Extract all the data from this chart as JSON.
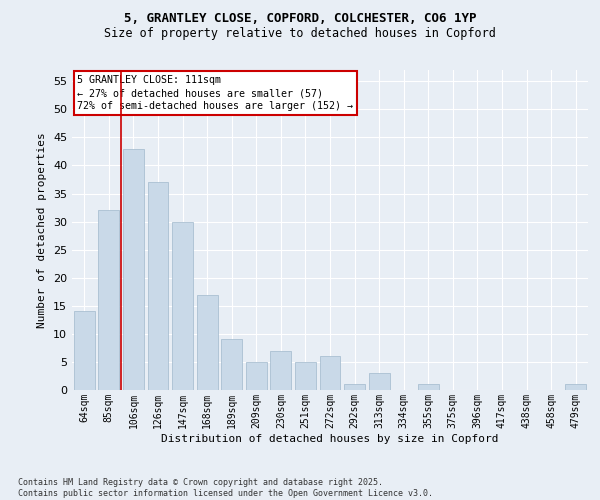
{
  "title_line1": "5, GRANTLEY CLOSE, COPFORD, COLCHESTER, CO6 1YP",
  "title_line2": "Size of property relative to detached houses in Copford",
  "xlabel": "Distribution of detached houses by size in Copford",
  "ylabel": "Number of detached properties",
  "categories": [
    "64sqm",
    "85sqm",
    "106sqm",
    "126sqm",
    "147sqm",
    "168sqm",
    "189sqm",
    "209sqm",
    "230sqm",
    "251sqm",
    "272sqm",
    "292sqm",
    "313sqm",
    "334sqm",
    "355sqm",
    "375sqm",
    "396sqm",
    "417sqm",
    "438sqm",
    "458sqm",
    "479sqm"
  ],
  "values": [
    14,
    32,
    43,
    37,
    30,
    17,
    9,
    5,
    7,
    5,
    6,
    1,
    3,
    0,
    1,
    0,
    0,
    0,
    0,
    0,
    1
  ],
  "bar_color": "#c9d9e8",
  "bar_edgecolor": "#a0b8cc",
  "vline_index": 2,
  "annotation_line1": "5 GRANTLEY CLOSE: 111sqm",
  "annotation_line2": "← 27% of detached houses are smaller (57)",
  "annotation_line3": "72% of semi-detached houses are larger (152) →",
  "annotation_box_facecolor": "#ffffff",
  "annotation_box_edgecolor": "#cc0000",
  "vline_color": "#cc0000",
  "bg_color": "#e8eef5",
  "grid_color": "#ffffff",
  "ylim_max": 57,
  "yticks": [
    0,
    5,
    10,
    15,
    20,
    25,
    30,
    35,
    40,
    45,
    50,
    55
  ],
  "footnote_line1": "Contains HM Land Registry data © Crown copyright and database right 2025.",
  "footnote_line2": "Contains public sector information licensed under the Open Government Licence v3.0."
}
